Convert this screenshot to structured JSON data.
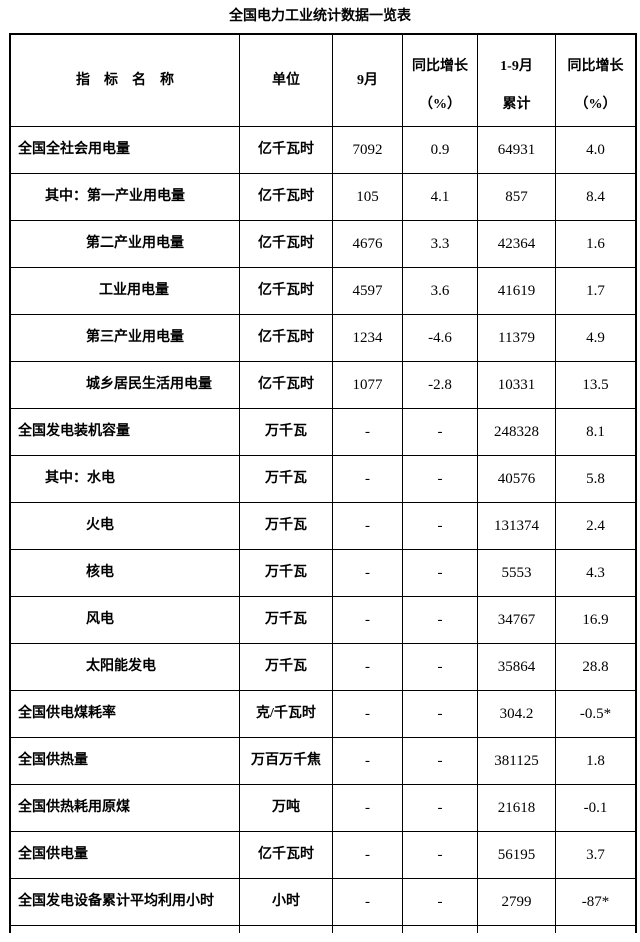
{
  "title": "全国电力工业统计数据一览表",
  "colors": {
    "background": "#ffffff",
    "border": "#000000",
    "text": "#000000"
  },
  "table": {
    "headers": {
      "indicator": "指　标　名　称",
      "unit": "单位",
      "month": "9月",
      "yoy_month": {
        "line1": "同比增长",
        "line2": "（%）"
      },
      "cumulative": {
        "line1": "1-9月",
        "line2": "累计"
      },
      "yoy_cumulative": {
        "line1": "同比增长",
        "line2": "（%）"
      }
    },
    "rows": [
      {
        "indicator": "全国全社会用电量",
        "indent": 0,
        "unit": "亿千瓦时",
        "month": "7092",
        "yoy_month": "0.9",
        "cumulative": "64931",
        "yoy_cumulative": "4.0"
      },
      {
        "indicator": "其中：第一产业用电量",
        "indent": 1,
        "unit": "亿千瓦时",
        "month": "105",
        "yoy_month": "4.1",
        "cumulative": "857",
        "yoy_cumulative": "8.4"
      },
      {
        "indicator": "第二产业用电量",
        "indent": 2,
        "unit": "亿千瓦时",
        "month": "4676",
        "yoy_month": "3.3",
        "cumulative": "42364",
        "yoy_cumulative": "1.6"
      },
      {
        "indicator": "工业用电量",
        "indent": 3,
        "unit": "亿千瓦时",
        "month": "4597",
        "yoy_month": "3.6",
        "cumulative": "41619",
        "yoy_cumulative": "1.7"
      },
      {
        "indicator": "第三产业用电量",
        "indent": 2,
        "unit": "亿千瓦时",
        "month": "1234",
        "yoy_month": "-4.6",
        "cumulative": "11379",
        "yoy_cumulative": "4.9"
      },
      {
        "indicator": "城乡居民生活用电量",
        "indent": 2,
        "unit": "亿千瓦时",
        "month": "1077",
        "yoy_month": "-2.8",
        "cumulative": "10331",
        "yoy_cumulative": "13.5"
      },
      {
        "indicator": "全国发电装机容量",
        "indent": 0,
        "unit": "万千瓦",
        "month": "-",
        "yoy_month": "-",
        "cumulative": "248328",
        "yoy_cumulative": "8.1"
      },
      {
        "indicator": "其中：水电",
        "indent": 1,
        "unit": "万千瓦",
        "month": "-",
        "yoy_month": "-",
        "cumulative": "40576",
        "yoy_cumulative": "5.8"
      },
      {
        "indicator": "火电",
        "indent": 2,
        "unit": "万千瓦",
        "month": "-",
        "yoy_month": "-",
        "cumulative": "131374",
        "yoy_cumulative": "2.4"
      },
      {
        "indicator": "核电",
        "indent": 2,
        "unit": "万千瓦",
        "month": "-",
        "yoy_month": "-",
        "cumulative": "5553",
        "yoy_cumulative": "4.3"
      },
      {
        "indicator": "风电",
        "indent": 2,
        "unit": "万千瓦",
        "month": "-",
        "yoy_month": "-",
        "cumulative": "34767",
        "yoy_cumulative": "16.9"
      },
      {
        "indicator": "太阳能发电",
        "indent": 2,
        "unit": "万千瓦",
        "month": "-",
        "yoy_month": "-",
        "cumulative": "35864",
        "yoy_cumulative": "28.8"
      },
      {
        "indicator": "全国供电煤耗率",
        "indent": 0,
        "unit": "克/千瓦时",
        "month": "-",
        "yoy_month": "-",
        "cumulative": "304.2",
        "yoy_cumulative": "-0.5*"
      },
      {
        "indicator": "全国供热量",
        "indent": 0,
        "unit": "万百万千焦",
        "month": "-",
        "yoy_month": "-",
        "cumulative": "381125",
        "yoy_cumulative": "1.8"
      },
      {
        "indicator": "全国供热耗用原煤",
        "indent": 0,
        "unit": "万吨",
        "month": "-",
        "yoy_month": "-",
        "cumulative": "21618",
        "yoy_cumulative": "-0.1"
      },
      {
        "indicator": "全国供电量",
        "indent": 0,
        "unit": "亿千瓦时",
        "month": "-",
        "yoy_month": "-",
        "cumulative": "56195",
        "yoy_cumulative": "3.7"
      },
      {
        "indicator": "全国发电设备累计平均利用小时",
        "indent": 0,
        "unit": "小时",
        "month": "-",
        "yoy_month": "-",
        "cumulative": "2799",
        "yoy_cumulative": "-87*"
      }
    ]
  }
}
